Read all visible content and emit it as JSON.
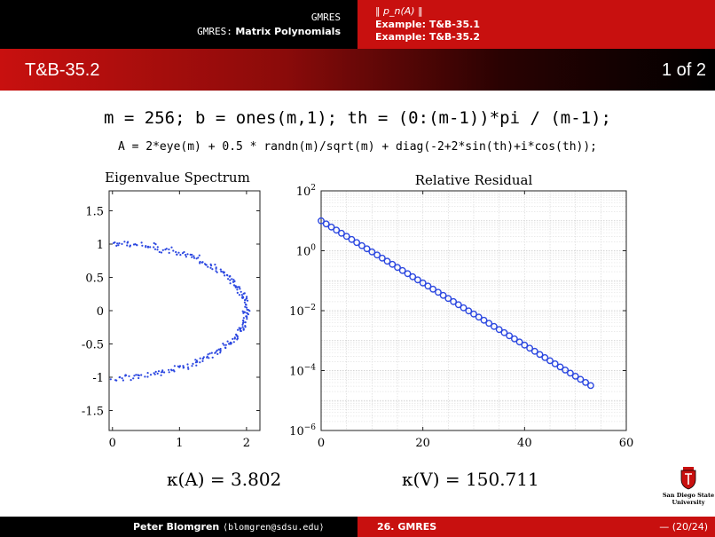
{
  "header": {
    "section_sub": "GMRES",
    "section_prefix": "GMRES:",
    "section_title": "Matrix Polynomials",
    "nav_items": [
      "‖ p_n(A) ‖",
      "Example:  T&B-35.1",
      "Example:  T&B-35.2"
    ]
  },
  "frame": {
    "title": "T&B-35.2",
    "page": "1 of 2"
  },
  "code": {
    "line1": "m = 256; b = ones(m,1); th = (0:(m-1))*pi / (m-1);",
    "line2": "A = 2*eye(m) + 0.5 * randn(m)/sqrt(m) + diag(-2+2*sin(th)+i*cos(th));"
  },
  "results": {
    "kappa_A_label": "κ(A) = 3.802",
    "kappa_V_label": "κ(V) = 150.711"
  },
  "logo": {
    "line1": "San Diego State",
    "line2": "University"
  },
  "footer": {
    "author": "Peter Blomgren",
    "email": "⟨blomgren@sdsu.edu⟩",
    "section": "26. GMRES",
    "page": "— (20/24)"
  },
  "colors": {
    "marker": "#2b47e0",
    "red": "#c8100f"
  },
  "chart_data": [
    {
      "type": "scatter",
      "title": "Eigenvalue Spectrum",
      "xlabel": "",
      "ylabel": "",
      "xlim": [
        -0.05,
        2.2
      ],
      "ylim": [
        -1.8,
        1.8
      ],
      "xticks": [
        "0",
        "1",
        "2"
      ],
      "yticks": [
        "1.5",
        "1",
        "0.5",
        "0",
        "-0.5",
        "-1",
        "-1.5"
      ],
      "description_shape": "eigenvalues of 2I + 0.5*randn/sqrt(m) + diag(-2+2 sin(th) + i cos(th)), th in [0, pi]; m = 256 points forming a sideways C shape"
    },
    {
      "type": "line",
      "title": "Relative Residual",
      "xlabel": "",
      "ylabel": "",
      "yscale": "log",
      "xlim": [
        0,
        60
      ],
      "ylim_exp": [
        -6,
        2
      ],
      "xticks": [
        "0",
        "20",
        "40",
        "60"
      ],
      "yticks": [
        "10^2",
        "10^0",
        "10^-2",
        "10^-4",
        "10^-6"
      ],
      "series": [
        {
          "iterations_start": 0,
          "iterations_end": 53,
          "log10_start": 1.0,
          "log10_end": -4.5
        }
      ],
      "grid": true
    }
  ]
}
